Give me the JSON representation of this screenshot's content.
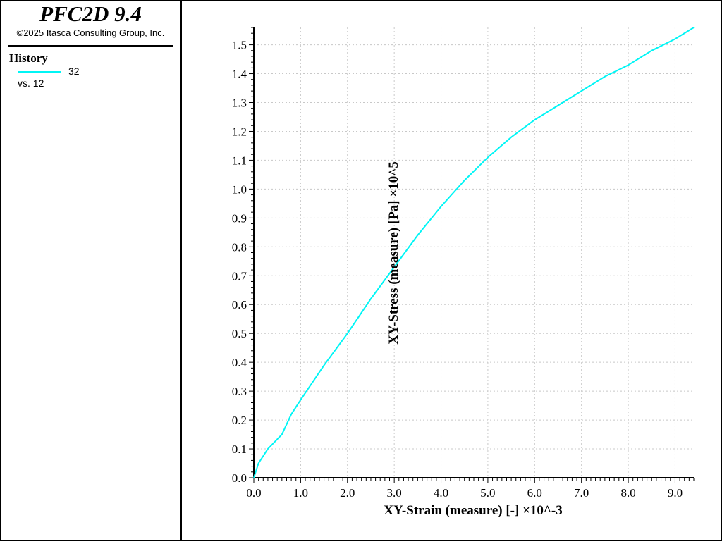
{
  "app": {
    "title": "PFC2D 9.4",
    "copyright": "©2025 Itasca Consulting Group, Inc."
  },
  "legend": {
    "title": "History",
    "series_id": "32",
    "vs_label": "vs. 12"
  },
  "colors": {
    "series": "#00f5f5",
    "axes": "#000000",
    "grid": "#c8c8c8"
  },
  "chart_data": {
    "type": "line",
    "xlabel": "XY-Strain (measure) [-] ×10^-3",
    "ylabel": "XY-Stress (measure) [Pa] ×10^5",
    "xlim": [
      0,
      9.4
    ],
    "ylim": [
      0,
      1.56
    ],
    "x_ticks": [
      "0.0",
      "1.0",
      "2.0",
      "3.0",
      "4.0",
      "5.0",
      "6.0",
      "7.0",
      "8.0",
      "9.0"
    ],
    "y_ticks": [
      "0.0",
      "0.1",
      "0.2",
      "0.3",
      "0.4",
      "0.5",
      "0.6",
      "0.7",
      "0.8",
      "0.9",
      "1.0",
      "1.1",
      "1.2",
      "1.3",
      "1.4",
      "1.5"
    ],
    "grid": true,
    "series": [
      {
        "x": [
          0.0,
          0.1,
          0.3,
          0.6,
          0.8,
          1.0,
          1.5,
          2.0,
          2.5,
          3.0,
          3.5,
          4.0,
          4.5,
          5.0,
          5.5,
          6.0,
          6.5,
          7.0,
          7.5,
          8.0,
          8.5,
          9.0,
          9.4
        ],
        "y": [
          0.0,
          0.05,
          0.1,
          0.15,
          0.22,
          0.27,
          0.39,
          0.5,
          0.62,
          0.73,
          0.84,
          0.94,
          1.03,
          1.11,
          1.18,
          1.24,
          1.29,
          1.34,
          1.39,
          1.43,
          1.48,
          1.52,
          1.56
        ]
      }
    ]
  }
}
